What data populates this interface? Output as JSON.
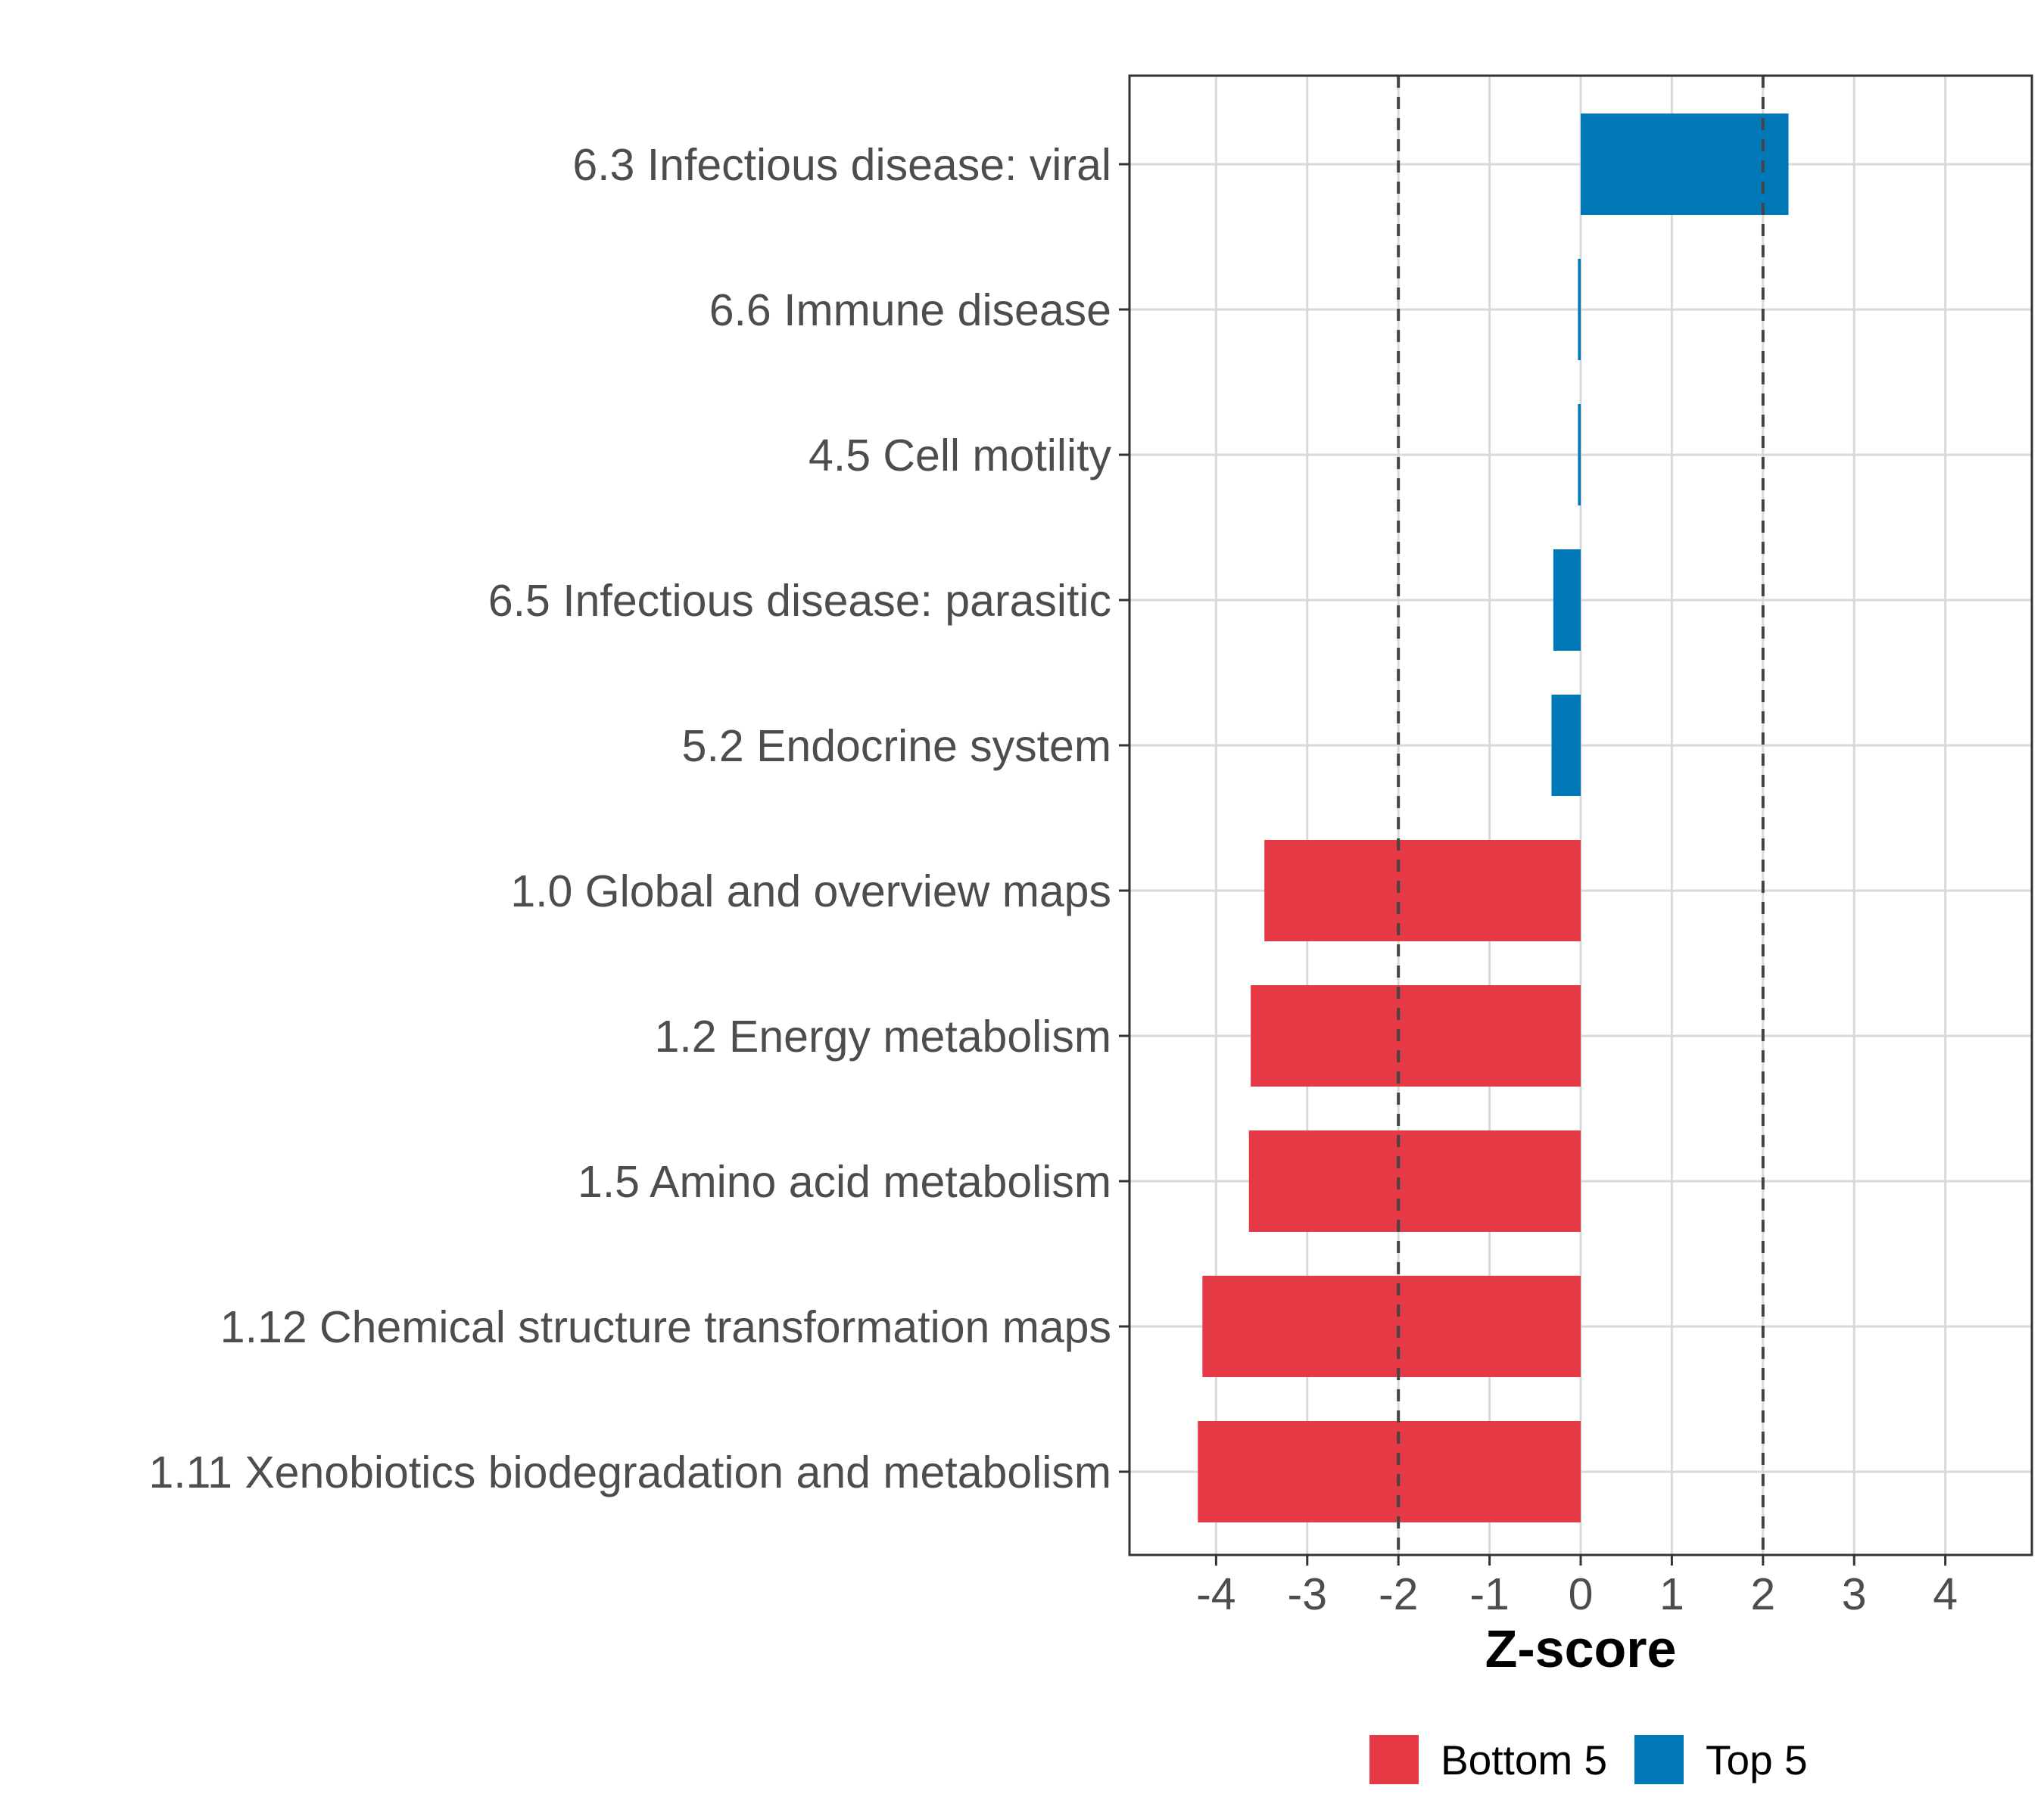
{
  "chart_data": {
    "type": "bar",
    "orientation": "horizontal",
    "categories": [
      "6.3 Infectious disease: viral",
      "6.6 Immune disease",
      "4.5 Cell motility",
      "6.5 Infectious disease: parasitic",
      "5.2 Endocrine system",
      "1.0 Global and overview maps",
      "1.2 Energy metabolism",
      "1.5 Amino acid metabolism",
      "1.12 Chemical structure transformation maps",
      "1.11 Xenobiotics biodegradation and metabolism"
    ],
    "values": [
      2.28,
      -0.03,
      -0.03,
      -0.3,
      -0.32,
      -3.47,
      -3.62,
      -3.64,
      -4.15,
      -4.2
    ],
    "groups": [
      "Top 5",
      "Top 5",
      "Top 5",
      "Top 5",
      "Top 5",
      "Bottom 5",
      "Bottom 5",
      "Bottom 5",
      "Bottom 5",
      "Bottom 5"
    ],
    "xlabel": "Z-score",
    "ylabel": "",
    "xlim": [
      -4.95,
      4.95
    ],
    "xticks": [
      -4,
      -3,
      -2,
      -1,
      0,
      1,
      2,
      3,
      4
    ],
    "xtick_labels": [
      "-4",
      "-3",
      "-2",
      "-1",
      "0",
      "1",
      "2",
      "3",
      "4"
    ],
    "reference_lines": [
      -2,
      2
    ],
    "grid": true,
    "legend": {
      "position": "bottom",
      "entries": [
        {
          "label": "Bottom 5",
          "color": "#e63946"
        },
        {
          "label": "Top 5",
          "color": "#0077b6"
        }
      ]
    }
  }
}
